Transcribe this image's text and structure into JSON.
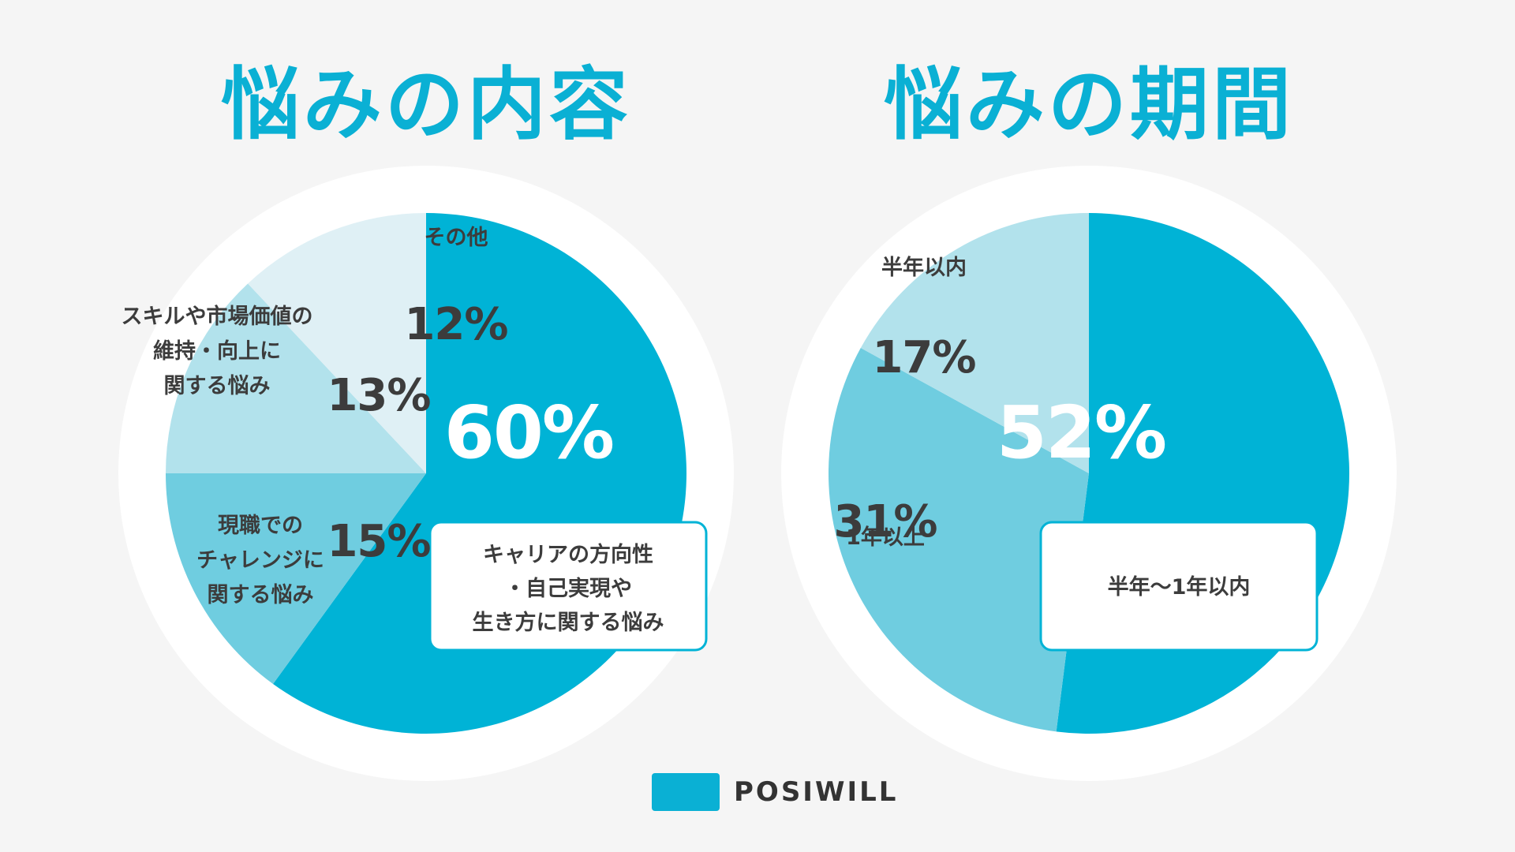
{
  "chart_data": [
    {
      "type": "pie",
      "title": "悩みの内容",
      "slices": [
        {
          "label": [
            "キャリアの方向性",
            "・自己実現や",
            "生き方に関する悩み"
          ],
          "value": 60,
          "display": "60%",
          "color": "#00b3d6"
        },
        {
          "label": [
            "現職での",
            "チャレンジに",
            "関する悩み"
          ],
          "value": 15,
          "display": "15%",
          "color": "#6fcde0"
        },
        {
          "label": [
            "スキルや市場価値の",
            "維持・向上に",
            "関する悩み"
          ],
          "value": 13,
          "display": "13%",
          "color": "#b2e2ec"
        },
        {
          "label": [
            "その他"
          ],
          "value": 12,
          "display": "12%",
          "color": "#dff0f5"
        }
      ]
    },
    {
      "type": "pie",
      "title": "悩みの期間",
      "slices": [
        {
          "label": [
            "半年〜1年以内"
          ],
          "value": 52,
          "display": "52%",
          "color": "#00b3d6"
        },
        {
          "label": [
            "1年以上"
          ],
          "value": 31,
          "display": "31%",
          "color": "#6fcde0"
        },
        {
          "label": [
            "半年以内"
          ],
          "value": 17,
          "display": "17%",
          "color": "#b2e2ec"
        }
      ]
    }
  ],
  "logo": {
    "text": "POSIWILL",
    "color": "#0ab0d4"
  }
}
